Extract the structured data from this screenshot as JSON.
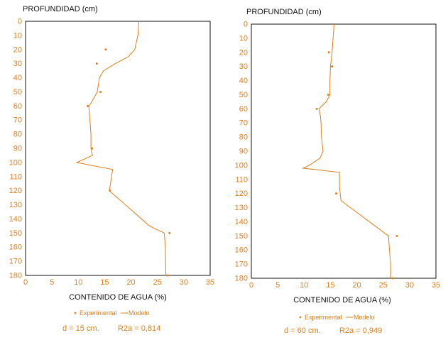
{
  "colors": {
    "line": "#E07F1A",
    "text": "#E07F1A",
    "title": "#111111",
    "axis": "#111111"
  },
  "chart_data": [
    {
      "type": "line",
      "ylabel": "PROFUNDIDAD (cm)",
      "xlabel": "CONTENIDO DE AGUA (%)",
      "xlim": [
        0,
        35
      ],
      "ylim": [
        0,
        180
      ],
      "y_inverted": true,
      "x_ticks": [
        "0",
        "5",
        "10",
        "15",
        "20",
        "25",
        "30",
        "35"
      ],
      "y_ticks": [
        "0",
        "10",
        "20",
        "30",
        "40",
        "50",
        "60",
        "70",
        "80",
        "90",
        "100",
        "110",
        "120",
        "130",
        "140",
        "150",
        "160",
        "170",
        "180"
      ],
      "legend": [
        "Experimental",
        "Modelo"
      ],
      "annotation": {
        "d": "d = 15 cm.",
        "r2": "R2a = 0,814"
      },
      "series": [
        {
          "name": "Experimental",
          "kind": "scatter",
          "points": [
            [
              15.2,
              20
            ],
            [
              13.5,
              30
            ],
            [
              14.2,
              50
            ],
            [
              11.8,
              60
            ],
            [
              12.6,
              90
            ],
            [
              16.0,
              120
            ],
            [
              27.3,
              150
            ],
            [
              26.9,
              180
            ]
          ]
        },
        {
          "name": "Modelo",
          "kind": "line",
          "points": [
            [
              21.5,
              0
            ],
            [
              21.3,
              10
            ],
            [
              20.7,
              20
            ],
            [
              19.5,
              25
            ],
            [
              17.0,
              30
            ],
            [
              14.8,
              35
            ],
            [
              14.0,
              40
            ],
            [
              13.6,
              50
            ],
            [
              12.4,
              58
            ],
            [
              12.0,
              60
            ],
            [
              12.2,
              70
            ],
            [
              12.4,
              80
            ],
            [
              12.4,
              90
            ],
            [
              12.7,
              95
            ],
            [
              9.7,
              100
            ],
            [
              16.5,
              105
            ],
            [
              15.9,
              120
            ],
            [
              23.5,
              145
            ],
            [
              26.3,
              150
            ],
            [
              26.5,
              160
            ],
            [
              26.6,
              180
            ]
          ]
        }
      ]
    },
    {
      "type": "line",
      "ylabel": "PROFUNDIDAD (cm)",
      "xlabel": "CONTENIDO DE AGUA (%)",
      "xlim": [
        0,
        35
      ],
      "ylim": [
        0,
        180
      ],
      "y_inverted": true,
      "x_ticks": [
        "0",
        "5",
        "10",
        "15",
        "20",
        "25",
        "30",
        "35"
      ],
      "y_ticks": [
        "0",
        "10",
        "20",
        "30",
        "40",
        "50",
        "60",
        "70",
        "80",
        "90",
        "100",
        "110",
        "120",
        "130",
        "140",
        "150",
        "160",
        "170",
        "180"
      ],
      "legend": [
        "Experimental",
        "Modelo"
      ],
      "annotation": {
        "d": "d = 60 cm.",
        "r2": "R2a = 0,949"
      },
      "series": [
        {
          "name": "Experimental",
          "kind": "scatter",
          "points": [
            [
              14.7,
              20
            ],
            [
              15.3,
              30
            ],
            [
              14.6,
              50
            ],
            [
              12.4,
              60
            ],
            [
              16.1,
              120
            ],
            [
              27.6,
              150
            ],
            [
              26.8,
              180
            ]
          ]
        },
        {
          "name": "Modelo",
          "kind": "line",
          "points": [
            [
              15.7,
              0
            ],
            [
              15.5,
              10
            ],
            [
              15.3,
              20
            ],
            [
              15.0,
              30
            ],
            [
              14.9,
              40
            ],
            [
              14.9,
              50
            ],
            [
              14.2,
              55
            ],
            [
              12.8,
              60
            ],
            [
              13.1,
              65
            ],
            [
              13.2,
              70
            ],
            [
              13.3,
              80
            ],
            [
              13.6,
              90
            ],
            [
              13.0,
              95
            ],
            [
              11.0,
              100
            ],
            [
              9.8,
              102
            ],
            [
              16.7,
              105
            ],
            [
              16.7,
              115
            ],
            [
              17.0,
              125
            ],
            [
              26.0,
              150
            ],
            [
              26.4,
              170
            ],
            [
              26.4,
              180
            ]
          ]
        }
      ]
    }
  ]
}
